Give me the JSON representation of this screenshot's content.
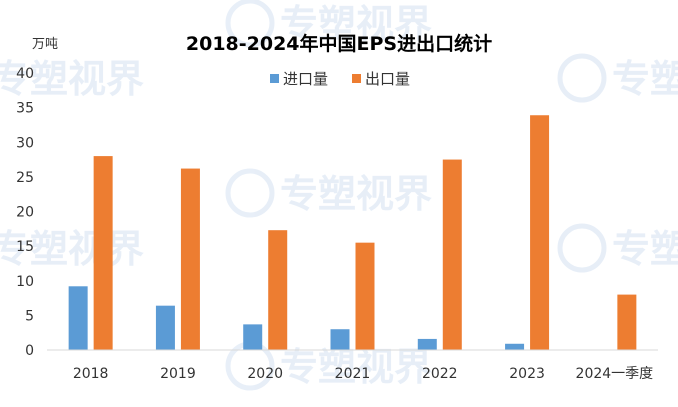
{
  "chart_data": {
    "type": "bar",
    "title": "2018-2024年中国EPS进出口统计",
    "ylabel": "万吨",
    "xlabel": "",
    "ylim": [
      0,
      40
    ],
    "yticks": [
      0,
      5,
      10,
      15,
      20,
      25,
      30,
      35,
      40
    ],
    "categories": [
      "2018",
      "2019",
      "2020",
      "2021",
      "2022",
      "2023",
      "2024一季度"
    ],
    "series": [
      {
        "name": "进口量",
        "color": "#5B9BD5",
        "values": [
          9.2,
          6.4,
          3.7,
          3.0,
          1.6,
          0.9,
          0
        ]
      },
      {
        "name": "出口量",
        "color": "#ED7D31",
        "values": [
          28.0,
          26.2,
          17.3,
          15.5,
          27.5,
          33.9,
          8.0
        ]
      }
    ],
    "grid": false,
    "legend": "top-center"
  },
  "watermark": {
    "text": "专塑视界"
  }
}
